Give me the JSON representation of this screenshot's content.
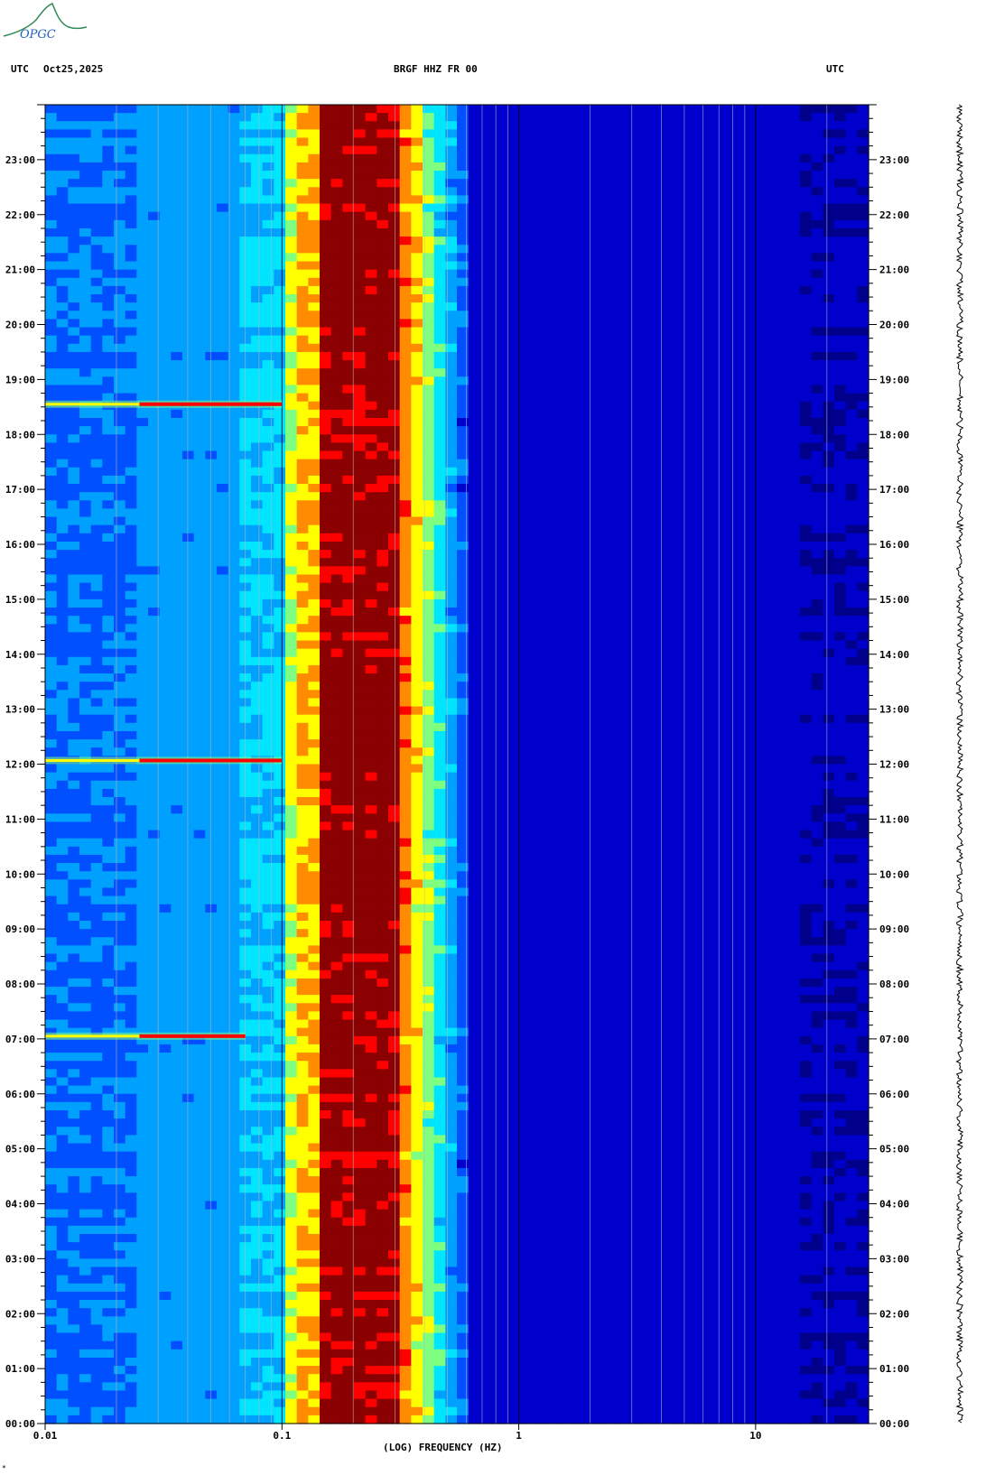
{
  "header": {
    "left_tz": "UTC",
    "date": "Oct25,2025",
    "station": "BRGF HHZ FR 00",
    "right_tz": "UTC"
  },
  "logo": {
    "text": "OPGC",
    "color": "#2e8b57"
  },
  "chart_data": {
    "type": "heatmap",
    "title": "BRGF HHZ FR 00",
    "xlabel": "(LOG) FREQUENCY (HZ)",
    "x_scale": "log",
    "xlim": [
      0.01,
      30
    ],
    "x_tick_labels": [
      "0.01",
      "0.1",
      "1",
      "10"
    ],
    "x_tick_values": [
      0.01,
      0.1,
      1,
      10
    ],
    "ylim_hours": [
      0,
      24
    ],
    "y_tick_labels": [
      "00:00",
      "01:00",
      "02:00",
      "03:00",
      "04:00",
      "05:00",
      "06:00",
      "07:00",
      "08:00",
      "09:00",
      "10:00",
      "11:00",
      "12:00",
      "13:00",
      "14:00",
      "15:00",
      "16:00",
      "17:00",
      "18:00",
      "19:00",
      "20:00",
      "21:00",
      "22:00",
      "23:00"
    ],
    "colormap": [
      "#00008b",
      "#0000cd",
      "#0050ff",
      "#00a0ff",
      "#00e5ff",
      "#7fff7f",
      "#ffff00",
      "#ff8c00",
      "#ff0000",
      "#8b0000"
    ],
    "microseism_band_hz": [
      0.14,
      0.3
    ],
    "events": [
      {
        "time": "07:03",
        "freq_hz": [
          0.01,
          0.07
        ]
      },
      {
        "time": "12:04",
        "freq_hz": [
          0.01,
          0.1
        ]
      },
      {
        "time": "18:33",
        "freq_hz": [
          0.01,
          0.1
        ]
      }
    ]
  }
}
